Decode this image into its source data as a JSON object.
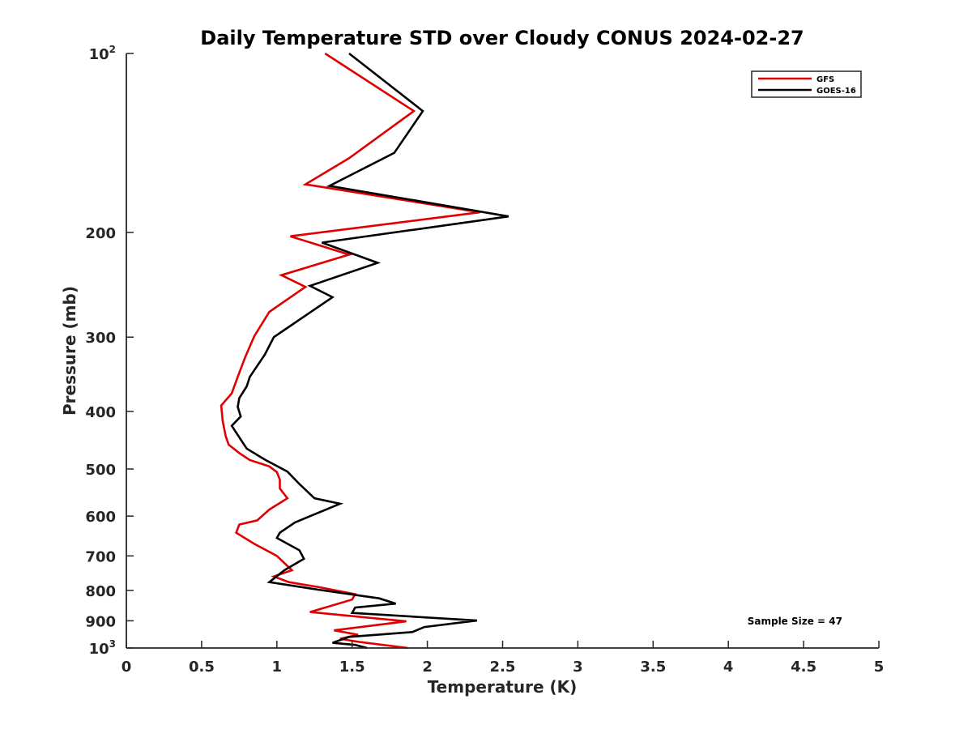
{
  "chart_data": {
    "type": "line",
    "title": "Daily Temperature STD over Cloudy CONUS 2024-02-27",
    "xlabel": "Temperature (K)",
    "ylabel": "Pressure (mb)",
    "xlim": [
      0,
      5
    ],
    "ylim": [
      100,
      1000
    ],
    "y_scale": "log",
    "y_reversed": true,
    "x_ticks": [
      0,
      0.5,
      1,
      1.5,
      2,
      2.5,
      3,
      3.5,
      4,
      4.5,
      5
    ],
    "x_tick_labels": [
      "0",
      "0.5",
      "1",
      "1.5",
      "2",
      "2.5",
      "3",
      "3.5",
      "4",
      "4.5",
      "5"
    ],
    "y_ticks": [
      100,
      200,
      300,
      400,
      500,
      600,
      700,
      800,
      900,
      1000
    ],
    "y_tick_labels": [
      {
        "base": "10",
        "exp": "2"
      },
      {
        "base": "200",
        "exp": ""
      },
      {
        "base": "300",
        "exp": ""
      },
      {
        "base": "400",
        "exp": ""
      },
      {
        "base": "500",
        "exp": ""
      },
      {
        "base": "600",
        "exp": ""
      },
      {
        "base": "700",
        "exp": ""
      },
      {
        "base": "800",
        "exp": ""
      },
      {
        "base": "900",
        "exp": ""
      },
      {
        "base": "10",
        "exp": "3"
      }
    ],
    "legend_position": "top-right",
    "annotation": "Sample Size = 47",
    "series": [
      {
        "name": "GFS",
        "color": "#e00000",
        "points": [
          [
            1.32,
            100
          ],
          [
            1.91,
            125
          ],
          [
            1.48,
            150
          ],
          [
            1.19,
            166
          ],
          [
            2.35,
            185
          ],
          [
            1.09,
            203
          ],
          [
            1.48,
            218
          ],
          [
            1.03,
            236
          ],
          [
            1.19,
            247
          ],
          [
            0.95,
            272
          ],
          [
            0.85,
            299
          ],
          [
            0.79,
            324
          ],
          [
            0.74,
            350
          ],
          [
            0.7,
            373
          ],
          [
            0.63,
            391
          ],
          [
            0.64,
            415
          ],
          [
            0.66,
            440
          ],
          [
            0.68,
            455
          ],
          [
            0.75,
            470
          ],
          [
            0.82,
            483
          ],
          [
            0.95,
            495
          ],
          [
            1.0,
            506
          ],
          [
            1.02,
            521
          ],
          [
            1.02,
            539
          ],
          [
            1.07,
            560
          ],
          [
            0.95,
            585
          ],
          [
            0.87,
            610
          ],
          [
            0.75,
            620
          ],
          [
            0.73,
            640
          ],
          [
            0.85,
            668
          ],
          [
            1.0,
            700
          ],
          [
            1.1,
            740
          ],
          [
            0.98,
            758
          ],
          [
            1.08,
            775
          ],
          [
            1.28,
            790
          ],
          [
            1.52,
            812
          ],
          [
            1.5,
            829
          ],
          [
            1.22,
            870
          ],
          [
            1.86,
            902
          ],
          [
            1.38,
            934
          ],
          [
            1.54,
            950
          ],
          [
            1.42,
            965
          ],
          [
            1.55,
            977
          ],
          [
            1.87,
            1000
          ]
        ]
      },
      {
        "name": "GOES-16",
        "color": "#000000",
        "points": [
          [
            1.48,
            100
          ],
          [
            1.97,
            125
          ],
          [
            1.78,
            147
          ],
          [
            1.35,
            167
          ],
          [
            2.54,
            188
          ],
          [
            1.3,
            208
          ],
          [
            1.67,
            225
          ],
          [
            1.22,
            246
          ],
          [
            1.37,
            257
          ],
          [
            1.1,
            286
          ],
          [
            0.98,
            300
          ],
          [
            0.92,
            321
          ],
          [
            0.82,
            350
          ],
          [
            0.8,
            363
          ],
          [
            0.75,
            380
          ],
          [
            0.74,
            393
          ],
          [
            0.76,
            408
          ],
          [
            0.7,
            423
          ],
          [
            0.77,
            450
          ],
          [
            0.8,
            462
          ],
          [
            0.92,
            482
          ],
          [
            1.07,
            505
          ],
          [
            1.15,
            530
          ],
          [
            1.25,
            560
          ],
          [
            1.42,
            572
          ],
          [
            1.12,
            615
          ],
          [
            1.02,
            640
          ],
          [
            1.0,
            653
          ],
          [
            1.15,
            685
          ],
          [
            1.18,
            708
          ],
          [
            1.05,
            740
          ],
          [
            0.95,
            775
          ],
          [
            1.28,
            798
          ],
          [
            1.68,
            825
          ],
          [
            1.79,
            842
          ],
          [
            1.52,
            855
          ],
          [
            1.5,
            873
          ],
          [
            2.33,
            899
          ],
          [
            1.98,
            922
          ],
          [
            1.9,
            940
          ],
          [
            1.48,
            958
          ],
          [
            1.37,
            980
          ],
          [
            1.52,
            988
          ],
          [
            1.6,
            1000
          ]
        ]
      }
    ]
  }
}
